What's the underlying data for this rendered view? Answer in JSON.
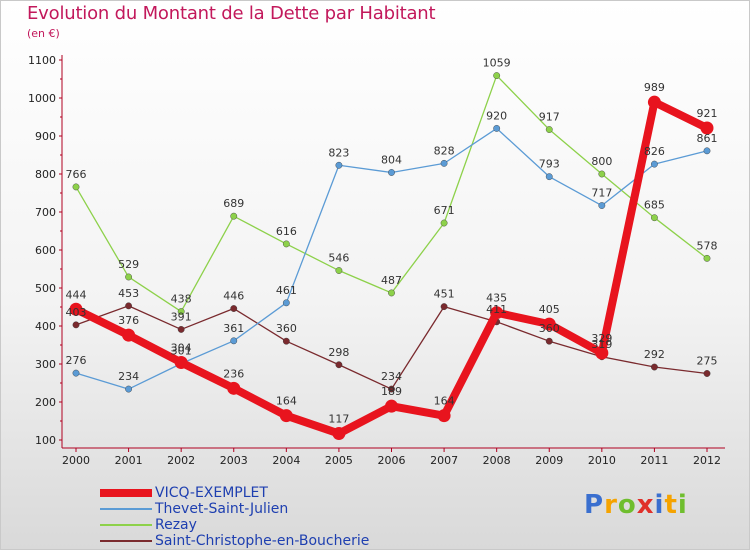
{
  "header": {
    "title": "Evolution du Montant de la Dette par Habitant",
    "unit": "(en €)"
  },
  "logo": {
    "letters": [
      "P",
      "r",
      "o",
      "x",
      "i",
      "t",
      "i"
    ],
    "colors": [
      "#3a6fcf",
      "#f5a300",
      "#6fbe2e",
      "#e0302a",
      "#3a6fcf",
      "#f5a300",
      "#6fbe2e"
    ]
  },
  "chart_data": {
    "type": "line",
    "title": "Evolution du Montant de la Dette par Habitant",
    "ylabel": "(en €)",
    "xlabel": "",
    "ylim": [
      100,
      1100
    ],
    "yticks": [
      100,
      200,
      300,
      400,
      500,
      600,
      700,
      800,
      900,
      1000,
      1100
    ],
    "x": [
      "2000",
      "2001",
      "2002",
      "2003",
      "2004",
      "2005",
      "2006",
      "2007",
      "2008",
      "2009",
      "2010",
      "2011",
      "2012"
    ],
    "grid": false,
    "legend_position": "bottom-left",
    "series": [
      {
        "name": "VICQ-EXEMPLET",
        "color": "#e8141e",
        "values": [
          444,
          376,
          304,
          236,
          164,
          117,
          189,
          164,
          435,
          405,
          329,
          989,
          921
        ]
      },
      {
        "name": "Thevet-Saint-Julien",
        "color": "#5b9bd5",
        "values": [
          276,
          234,
          301,
          361,
          461,
          823,
          804,
          828,
          920,
          793,
          717,
          826,
          861
        ]
      },
      {
        "name": "Rezay",
        "color": "#8dd14a",
        "values": [
          766,
          529,
          438,
          689,
          616,
          546,
          487,
          671,
          1059,
          917,
          800,
          685,
          578
        ]
      },
      {
        "name": "Saint-Christophe-en-Boucherie",
        "color": "#7a2a2e",
        "values": [
          403,
          453,
          391,
          446,
          360,
          298,
          234,
          451,
          411,
          360,
          319,
          292,
          275
        ]
      }
    ]
  }
}
